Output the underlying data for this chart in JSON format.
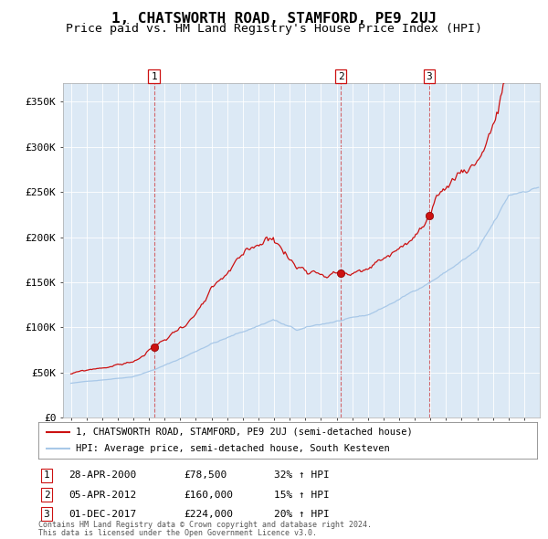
{
  "title": "1, CHATSWORTH ROAD, STAMFORD, PE9 2UJ",
  "subtitle": "Price paid vs. HM Land Registry's House Price Index (HPI)",
  "title_fontsize": 11.5,
  "subtitle_fontsize": 9.5,
  "plot_bg_color": "#dce9f5",
  "fig_bg_color": "#ffffff",
  "red_line_label": "1, CHATSWORTH ROAD, STAMFORD, PE9 2UJ (semi-detached house)",
  "blue_line_label": "HPI: Average price, semi-detached house, South Kesteven",
  "sale_points": [
    {
      "date_num": 2000.32,
      "price": 78500,
      "label": "1"
    },
    {
      "date_num": 2012.27,
      "price": 160000,
      "label": "2"
    },
    {
      "date_num": 2017.92,
      "price": 224000,
      "label": "3"
    }
  ],
  "sale_labels_info": [
    {
      "label": "1",
      "date": "28-APR-2000",
      "price": "£78,500",
      "hpi": "32% ↑ HPI"
    },
    {
      "label": "2",
      "date": "05-APR-2012",
      "price": "£160,000",
      "hpi": "15% ↑ HPI"
    },
    {
      "label": "3",
      "date": "01-DEC-2017",
      "price": "£224,000",
      "hpi": "20% ↑ HPI"
    }
  ],
  "ylim": [
    0,
    370000
  ],
  "yticks": [
    0,
    50000,
    100000,
    150000,
    200000,
    250000,
    300000,
    350000
  ],
  "ytick_labels": [
    "£0",
    "£50K",
    "£100K",
    "£150K",
    "£200K",
    "£250K",
    "£300K",
    "£350K"
  ],
  "xlim_start": 1994.5,
  "xlim_end": 2025.0,
  "footer_line1": "Contains HM Land Registry data © Crown copyright and database right 2024.",
  "footer_line2": "This data is licensed under the Open Government Licence v3.0."
}
